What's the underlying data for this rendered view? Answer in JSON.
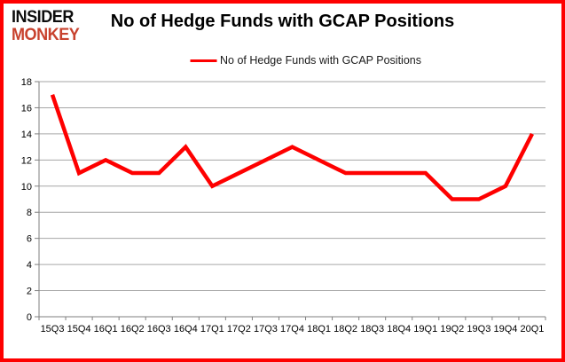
{
  "logo": {
    "line1": "INSIDER",
    "line2": "MONKEY"
  },
  "header": {
    "title": "No of Hedge Funds with GCAP Positions"
  },
  "colors": {
    "frame_border": "#fe0000",
    "series_line": "#fe0000",
    "logo_accent": "#c8422e",
    "gridline": "#a6a6a6",
    "axis": "#7f7f7f",
    "tick_text": "#000000"
  },
  "chart_data": {
    "type": "line",
    "title": "No of Hedge Funds with GCAP Positions",
    "categories": [
      "15Q3",
      "15Q4",
      "16Q1",
      "16Q2",
      "16Q3",
      "16Q4",
      "17Q1",
      "17Q2",
      "17Q3",
      "17Q4",
      "18Q1",
      "18Q2",
      "18Q3",
      "18Q4",
      "19Q1",
      "19Q2",
      "19Q3",
      "19Q4",
      "20Q1"
    ],
    "series": [
      {
        "name": "No of Hedge Funds with GCAP Positions",
        "color": "#fe0000",
        "values": [
          17,
          11,
          12,
          11,
          11,
          13,
          10,
          11,
          12,
          13,
          12,
          11,
          11,
          11,
          11,
          9,
          9,
          10,
          14
        ]
      }
    ],
    "xlabel": "",
    "ylabel": "",
    "ylim": [
      0,
      18
    ],
    "ytick_step": 2,
    "grid": true,
    "legend_position": "top-center"
  }
}
